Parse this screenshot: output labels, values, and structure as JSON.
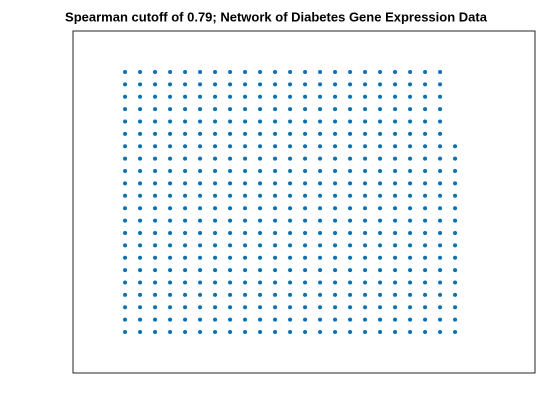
{
  "chart_data": {
    "type": "scatter",
    "title": "Spearman cutoff of 0.79; Network of Diabetes Gene Expression Data",
    "color": "#0072bd",
    "xlim": [
      -2.47,
      28.33
    ],
    "ylim": [
      -2.31,
      25.31
    ],
    "x": [
      1,
      2,
      3,
      4,
      5,
      6,
      7,
      8,
      9,
      10,
      11,
      12,
      13,
      14,
      15,
      16,
      17,
      18,
      19,
      20,
      21,
      22,
      1,
      2,
      3,
      4,
      5,
      6,
      7,
      8,
      9,
      10,
      11,
      12,
      13,
      14,
      15,
      16,
      17,
      18,
      19,
      20,
      21,
      22,
      1,
      2,
      3,
      4,
      5,
      6,
      7,
      8,
      9,
      10,
      11,
      12,
      13,
      14,
      15,
      16,
      17,
      18,
      19,
      20,
      21,
      22,
      1,
      2,
      3,
      4,
      5,
      6,
      7,
      8,
      9,
      10,
      11,
      12,
      13,
      14,
      15,
      16,
      17,
      18,
      19,
      20,
      21,
      22,
      1,
      2,
      3,
      4,
      5,
      6,
      7,
      8,
      9,
      10,
      11,
      12,
      13,
      14,
      15,
      16,
      17,
      18,
      19,
      20,
      21,
      22,
      1,
      2,
      3,
      4,
      5,
      6,
      7,
      8,
      9,
      10,
      11,
      12,
      13,
      14,
      15,
      16,
      17,
      18,
      19,
      20,
      21,
      22,
      1,
      2,
      3,
      4,
      5,
      6,
      7,
      8,
      9,
      10,
      11,
      12,
      13,
      14,
      15,
      16,
      17,
      18,
      19,
      20,
      21,
      22,
      23,
      1,
      2,
      3,
      4,
      5,
      6,
      7,
      8,
      9,
      10,
      11,
      12,
      13,
      14,
      15,
      16,
      17,
      18,
      19,
      20,
      21,
      22,
      23,
      1,
      2,
      3,
      4,
      5,
      6,
      7,
      8,
      9,
      10,
      11,
      12,
      13,
      14,
      15,
      16,
      17,
      18,
      19,
      20,
      21,
      22,
      23,
      1,
      2,
      3,
      4,
      5,
      6,
      7,
      8,
      9,
      10,
      11,
      12,
      13,
      14,
      15,
      16,
      17,
      18,
      19,
      20,
      21,
      22,
      23,
      1,
      2,
      3,
      4,
      5,
      6,
      7,
      8,
      9,
      10,
      11,
      12,
      13,
      14,
      15,
      16,
      17,
      18,
      19,
      20,
      21,
      22,
      23,
      1,
      2,
      3,
      4,
      5,
      6,
      7,
      8,
      9,
      10,
      11,
      12,
      13,
      14,
      15,
      16,
      17,
      18,
      19,
      20,
      21,
      22,
      23,
      1,
      2,
      3,
      4,
      5,
      6,
      7,
      8,
      9,
      10,
      11,
      12,
      13,
      14,
      15,
      16,
      17,
      18,
      19,
      20,
      21,
      22,
      23,
      1,
      2,
      3,
      4,
      5,
      6,
      7,
      8,
      9,
      10,
      11,
      12,
      13,
      14,
      15,
      16,
      17,
      18,
      19,
      20,
      21,
      22,
      23,
      1,
      2,
      3,
      4,
      5,
      6,
      7,
      8,
      9,
      10,
      11,
      12,
      13,
      14,
      15,
      16,
      17,
      18,
      19,
      20,
      21,
      22,
      23,
      1,
      2,
      3,
      4,
      5,
      6,
      7,
      8,
      9,
      10,
      11,
      12,
      13,
      14,
      15,
      16,
      17,
      18,
      19,
      20,
      21,
      22,
      23,
      1,
      2,
      3,
      4,
      5,
      6,
      7,
      8,
      9,
      10,
      11,
      12,
      13,
      14,
      15,
      16,
      17,
      18,
      19,
      20,
      21,
      22,
      23,
      1,
      2,
      3,
      4,
      5,
      6,
      7,
      8,
      9,
      10,
      11,
      12,
      13,
      14,
      15,
      16,
      17,
      18,
      19,
      20,
      21,
      22,
      23,
      1,
      2,
      3,
      4,
      5,
      6,
      7,
      8,
      9,
      10,
      11,
      12,
      13,
      14,
      15,
      16,
      17,
      18,
      19,
      20,
      21,
      22,
      23,
      1,
      2,
      3,
      4,
      5,
      6,
      7,
      8,
      9,
      10,
      11,
      12,
      13,
      14,
      15,
      16,
      17,
      18,
      19,
      20,
      21,
      22,
      23,
      1,
      2,
      3,
      4,
      5,
      6,
      7,
      8,
      9,
      10,
      11,
      12,
      13,
      14,
      15,
      16,
      17,
      18,
      19,
      20,
      21,
      22,
      23,
      1,
      2,
      3,
      4,
      5,
      6,
      7,
      8,
      9,
      10,
      11,
      12,
      13,
      14,
      15,
      16,
      17,
      18,
      19,
      20,
      21,
      22,
      23
    ],
    "y": [
      22,
      22,
      22,
      22,
      22,
      22,
      22,
      22,
      22,
      22,
      22,
      22,
      22,
      22,
      22,
      22,
      22,
      22,
      22,
      22,
      22,
      22,
      21,
      21,
      21,
      21,
      21,
      21,
      21,
      21,
      21,
      21,
      21,
      21,
      21,
      21,
      21,
      21,
      21,
      21,
      21,
      21,
      21,
      21,
      20,
      20,
      20,
      20,
      20,
      20,
      20,
      20,
      20,
      20,
      20,
      20,
      20,
      20,
      20,
      20,
      20,
      20,
      20,
      20,
      20,
      20,
      19,
      19,
      19,
      19,
      19,
      19,
      19,
      19,
      19,
      19,
      19,
      19,
      19,
      19,
      19,
      19,
      19,
      19,
      19,
      19,
      19,
      19,
      18,
      18,
      18,
      18,
      18,
      18,
      18,
      18,
      18,
      18,
      18,
      18,
      18,
      18,
      18,
      18,
      18,
      18,
      18,
      18,
      18,
      18,
      17,
      17,
      17,
      17,
      17,
      17,
      17,
      17,
      17,
      17,
      17,
      17,
      17,
      17,
      17,
      17,
      17,
      17,
      17,
      17,
      17,
      17,
      16,
      16,
      16,
      16,
      16,
      16,
      16,
      16,
      16,
      16,
      16,
      16,
      16,
      16,
      16,
      16,
      16,
      16,
      16,
      16,
      16,
      16,
      16,
      15,
      15,
      15,
      15,
      15,
      15,
      15,
      15,
      15,
      15,
      15,
      15,
      15,
      15,
      15,
      15,
      15,
      15,
      15,
      15,
      15,
      15,
      15,
      14,
      14,
      14,
      14,
      14,
      14,
      14,
      14,
      14,
      14,
      14,
      14,
      14,
      14,
      14,
      14,
      14,
      14,
      14,
      14,
      14,
      14,
      14,
      13,
      13,
      13,
      13,
      13,
      13,
      13,
      13,
      13,
      13,
      13,
      13,
      13,
      13,
      13,
      13,
      13,
      13,
      13,
      13,
      13,
      13,
      13,
      12,
      12,
      12,
      12,
      12,
      12,
      12,
      12,
      12,
      12,
      12,
      12,
      12,
      12,
      12,
      12,
      12,
      12,
      12,
      12,
      12,
      12,
      12,
      11,
      11,
      11,
      11,
      11,
      11,
      11,
      11,
      11,
      11,
      11,
      11,
      11,
      11,
      11,
      11,
      11,
      11,
      11,
      11,
      11,
      11,
      11,
      10,
      10,
      10,
      10,
      10,
      10,
      10,
      10,
      10,
      10,
      10,
      10,
      10,
      10,
      10,
      10,
      10,
      10,
      10,
      10,
      10,
      10,
      10,
      9,
      9,
      9,
      9,
      9,
      9,
      9,
      9,
      9,
      9,
      9,
      9,
      9,
      9,
      9,
      9,
      9,
      9,
      9,
      9,
      9,
      9,
      9,
      8,
      8,
      8,
      8,
      8,
      8,
      8,
      8,
      8,
      8,
      8,
      8,
      8,
      8,
      8,
      8,
      8,
      8,
      8,
      8,
      8,
      8,
      8,
      7,
      7,
      7,
      7,
      7,
      7,
      7,
      7,
      7,
      7,
      7,
      7,
      7,
      7,
      7,
      7,
      7,
      7,
      7,
      7,
      7,
      7,
      7,
      6,
      6,
      6,
      6,
      6,
      6,
      6,
      6,
      6,
      6,
      6,
      6,
      6,
      6,
      6,
      6,
      6,
      6,
      6,
      6,
      6,
      6,
      6,
      5,
      5,
      5,
      5,
      5,
      5,
      5,
      5,
      5,
      5,
      5,
      5,
      5,
      5,
      5,
      5,
      5,
      5,
      5,
      5,
      5,
      5,
      5,
      4,
      4,
      4,
      4,
      4,
      4,
      4,
      4,
      4,
      4,
      4,
      4,
      4,
      4,
      4,
      4,
      4,
      4,
      4,
      4,
      4,
      4,
      4,
      3,
      3,
      3,
      3,
      3,
      3,
      3,
      3,
      3,
      3,
      3,
      3,
      3,
      3,
      3,
      3,
      3,
      3,
      3,
      3,
      3,
      3,
      3,
      2,
      2,
      2,
      2,
      2,
      2,
      2,
      2,
      2,
      2,
      2,
      2,
      2,
      2,
      2,
      2,
      2,
      2,
      2,
      2,
      2,
      2,
      2,
      1,
      1,
      1,
      1,
      1,
      1,
      1,
      1,
      1,
      1,
      1,
      1,
      1,
      1,
      1,
      1,
      1,
      1,
      1,
      1,
      1,
      1,
      1
    ]
  }
}
